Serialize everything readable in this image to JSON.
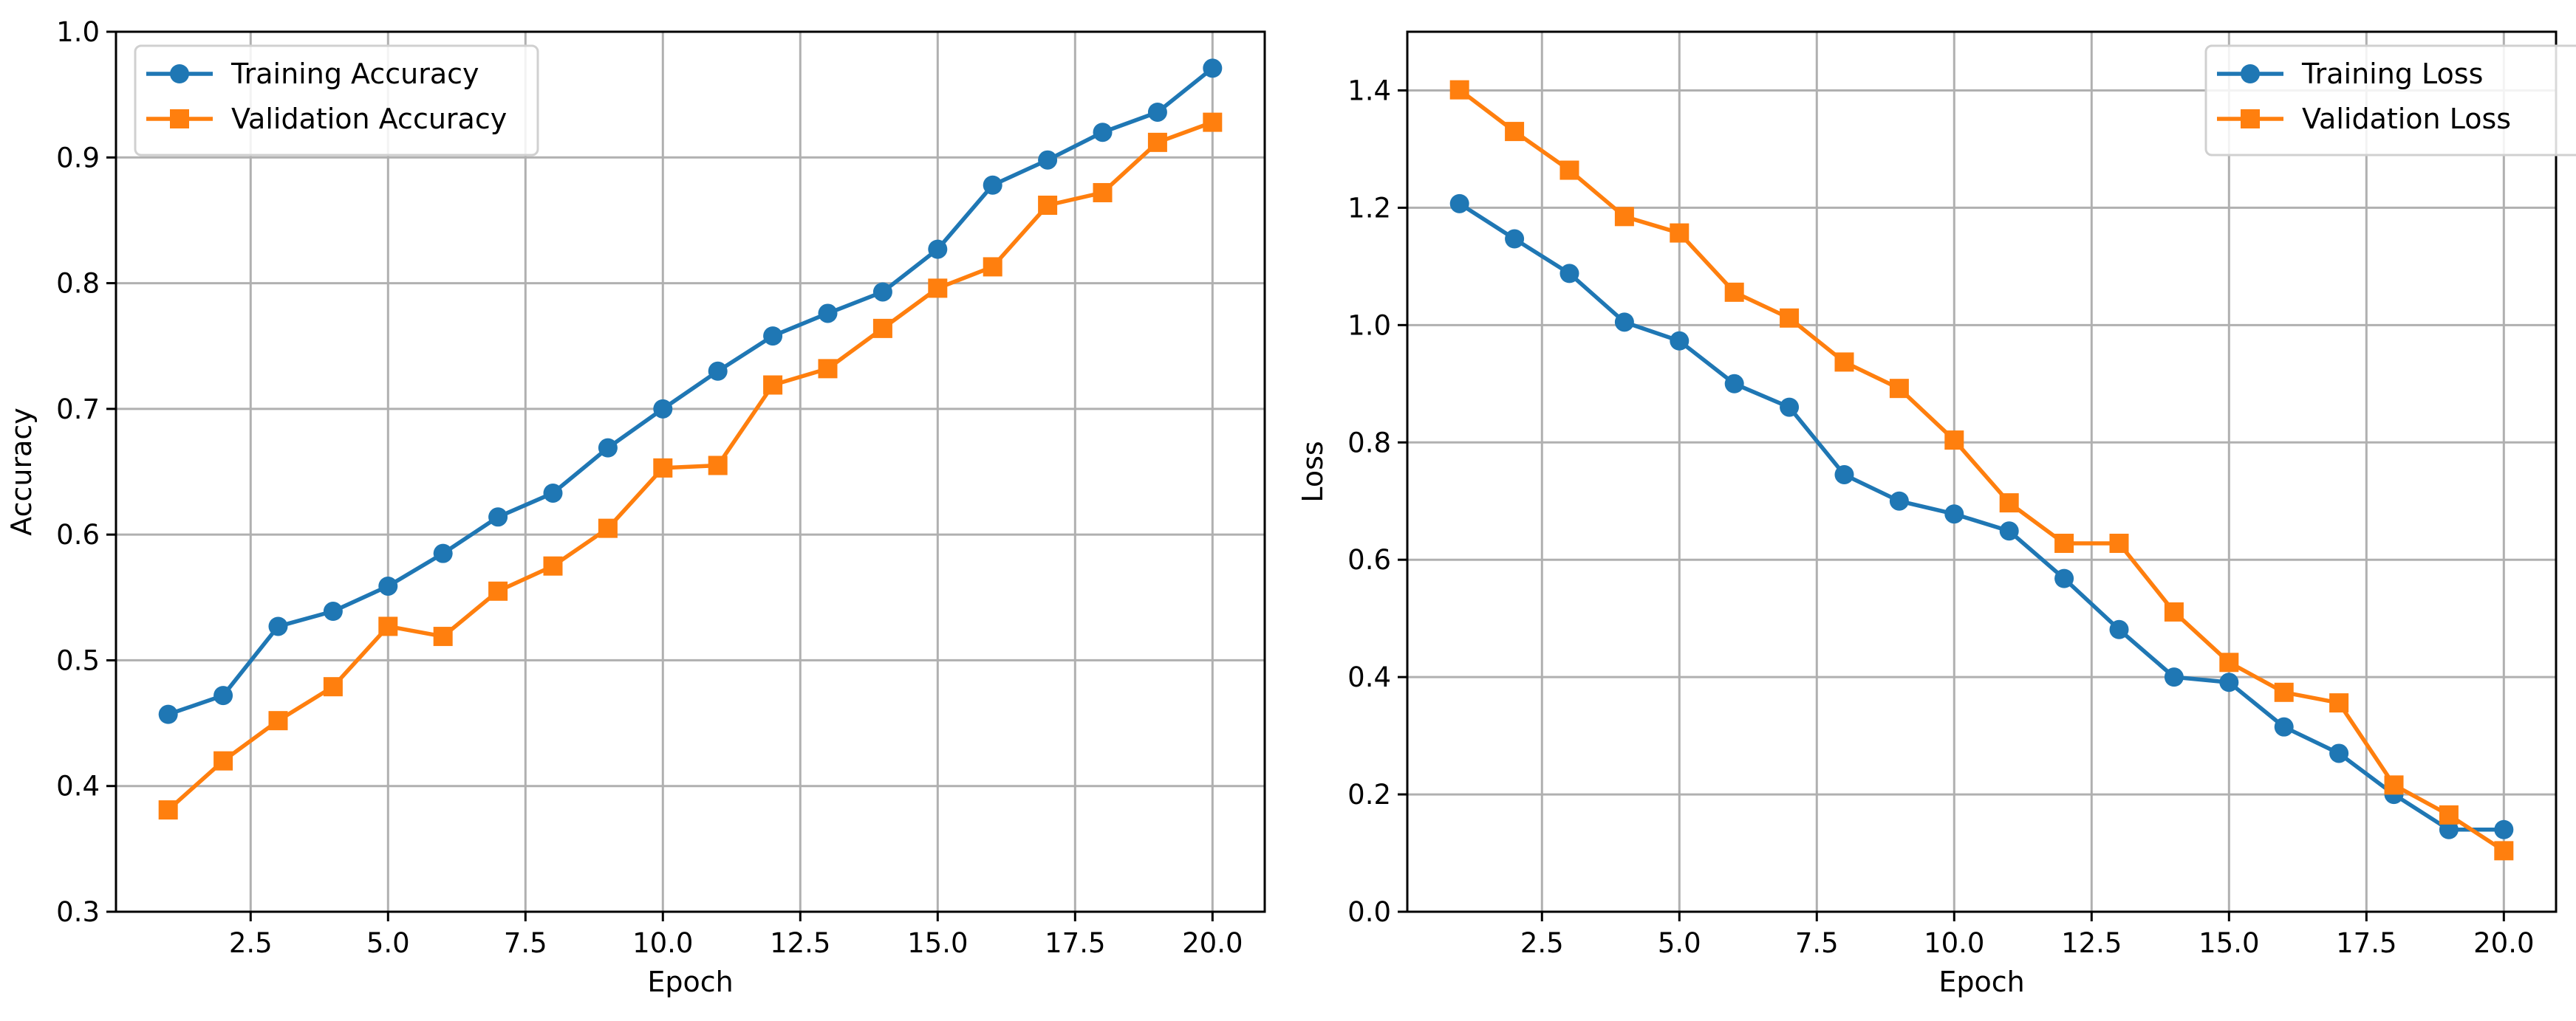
{
  "chart_data": [
    {
      "type": "line",
      "title": "",
      "xlabel": "Epoch",
      "ylabel": "Accuracy",
      "xlim": [
        0.05,
        20.95
      ],
      "ylim": [
        0.3,
        1.0
      ],
      "xticks": [
        2.5,
        5.0,
        7.5,
        10.0,
        12.5,
        15.0,
        17.5,
        20.0
      ],
      "xtick_labels": [
        "2.5",
        "5.0",
        "7.5",
        "10.0",
        "12.5",
        "15.0",
        "17.5",
        "20.0"
      ],
      "yticks": [
        0.3,
        0.4,
        0.5,
        0.6,
        0.7,
        0.8,
        0.9,
        1.0
      ],
      "ytick_labels": [
        "0.3",
        "0.4",
        "0.5",
        "0.6",
        "0.7",
        "0.8",
        "0.9",
        "1.0"
      ],
      "grid": true,
      "legend": "top-left",
      "x": [
        1,
        2,
        3,
        4,
        5,
        6,
        7,
        8,
        9,
        10,
        11,
        12,
        13,
        14,
        15,
        16,
        17,
        18,
        19,
        20
      ],
      "series": [
        {
          "name": "Training Accuracy",
          "color": "#1f77b4",
          "marker": "circle",
          "values": [
            0.457,
            0.472,
            0.527,
            0.539,
            0.559,
            0.585,
            0.614,
            0.633,
            0.669,
            0.7,
            0.73,
            0.758,
            0.776,
            0.793,
            0.827,
            0.878,
            0.898,
            0.92,
            0.936,
            0.971
          ]
        },
        {
          "name": "Validation Accuracy",
          "color": "#ff7f0e",
          "marker": "square",
          "values": [
            0.381,
            0.42,
            0.452,
            0.479,
            0.527,
            0.519,
            0.555,
            0.575,
            0.605,
            0.653,
            0.655,
            0.719,
            0.732,
            0.764,
            0.796,
            0.813,
            0.862,
            0.872,
            0.912,
            0.928
          ]
        }
      ]
    },
    {
      "type": "line",
      "title": "",
      "xlabel": "Epoch",
      "ylabel": "Loss",
      "xlim": [
        0.05,
        20.95
      ],
      "ylim": [
        0.0,
        1.5
      ],
      "xticks": [
        2.5,
        5.0,
        7.5,
        10.0,
        12.5,
        15.0,
        17.5,
        20.0
      ],
      "xtick_labels": [
        "2.5",
        "5.0",
        "7.5",
        "10.0",
        "12.5",
        "15.0",
        "17.5",
        "20.0"
      ],
      "yticks": [
        0.0,
        0.2,
        0.4,
        0.6,
        0.8,
        1.0,
        1.2,
        1.4
      ],
      "ytick_labels": [
        "0.0",
        "0.2",
        "0.4",
        "0.6",
        "0.8",
        "1.0",
        "1.2",
        "1.4"
      ],
      "grid": true,
      "legend": "top-right",
      "x": [
        1,
        2,
        3,
        4,
        5,
        6,
        7,
        8,
        9,
        10,
        11,
        12,
        13,
        14,
        15,
        16,
        17,
        18,
        19,
        20
      ],
      "series": [
        {
          "name": "Training Loss",
          "color": "#1f77b4",
          "marker": "circle",
          "values": [
            1.207,
            1.147,
            1.088,
            1.005,
            0.973,
            0.9,
            0.86,
            0.745,
            0.7,
            0.678,
            0.649,
            0.568,
            0.481,
            0.4,
            0.391,
            0.315,
            0.27,
            0.2,
            0.14,
            0.14
          ]
        },
        {
          "name": "Validation Loss",
          "color": "#ff7f0e",
          "marker": "square",
          "values": [
            1.401,
            1.33,
            1.264,
            1.185,
            1.157,
            1.056,
            1.012,
            0.937,
            0.892,
            0.804,
            0.697,
            0.628,
            0.628,
            0.511,
            0.425,
            0.374,
            0.356,
            0.216,
            0.165,
            0.104
          ]
        }
      ]
    }
  ]
}
